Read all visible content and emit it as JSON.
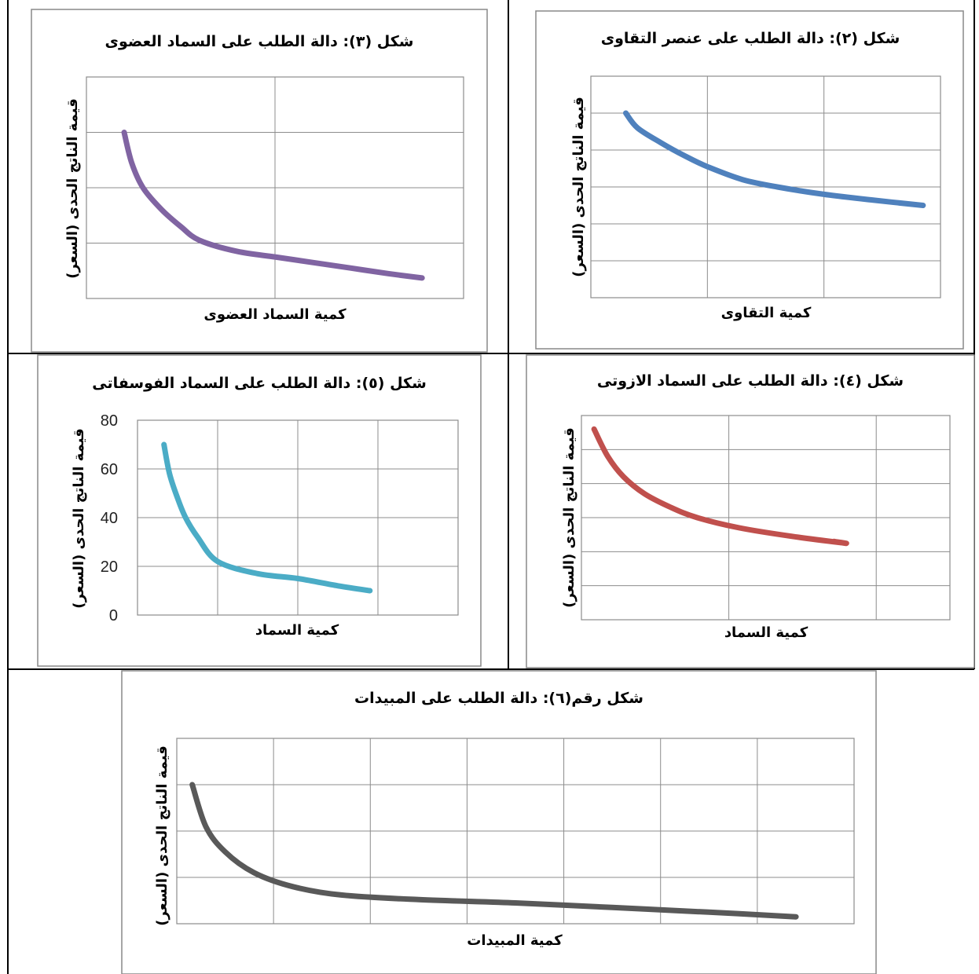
{
  "chart_data": [
    {
      "id": "fig3",
      "type": "line",
      "title": "شكل (٣): دالة الطلب على السماد العضوى",
      "xlabel": "كمية السماد العضوى",
      "ylabel": "قيمة الناتج الحدى (السعر)",
      "color": "#8064a2",
      "xlim": [
        0,
        10
      ],
      "ylim": [
        0,
        4
      ],
      "grid": true,
      "x": [
        1.0,
        1.2,
        1.5,
        2.0,
        2.5,
        3.0,
        4.0,
        5.0,
        6.0,
        7.0,
        8.0,
        8.9
      ],
      "y": [
        3.0,
        2.45,
        2.0,
        1.6,
        1.3,
        1.05,
        0.85,
        0.75,
        0.65,
        0.55,
        0.45,
        0.37
      ]
    },
    {
      "id": "fig2",
      "type": "line",
      "title": "شكل (٢): دالة الطلب على عنصر التقاوى",
      "xlabel": "كمية التقاوى",
      "ylabel": "قيمة الناتج الحدى (السعر)",
      "color": "#4f81bd",
      "xlim": [
        0,
        3
      ],
      "ylim": [
        0,
        6
      ],
      "grid": true,
      "x": [
        0.3,
        0.4,
        0.6,
        0.8,
        1.0,
        1.3,
        1.6,
        2.0,
        2.4,
        2.85
      ],
      "y": [
        5.0,
        4.6,
        4.2,
        3.85,
        3.55,
        3.2,
        3.0,
        2.8,
        2.65,
        2.5
      ]
    },
    {
      "id": "fig5",
      "type": "line",
      "title": "شكل (٥): دالة الطلب على السماد الفوسفاتى",
      "xlabel": "كمية السماد",
      "ylabel": "قيمة الناتج الحدى (السعر)",
      "color": "#4bacc6",
      "xlim": [
        0,
        4
      ],
      "ylim": [
        0,
        80
      ],
      "yticks": [
        0,
        20,
        40,
        60,
        80
      ],
      "grid": true,
      "x": [
        0.33,
        0.4,
        0.5,
        0.6,
        0.75,
        1.0,
        1.5,
        2.0,
        2.5,
        2.9
      ],
      "y": [
        70,
        58,
        48,
        40,
        32,
        22,
        17,
        15,
        12,
        10
      ]
    },
    {
      "id": "fig4",
      "type": "line",
      "title": "شكل (٤): دالة الطلب على السماد الازوتى",
      "xlabel": "كمية السماد",
      "ylabel": "قيمة الناتج الحدى (السعر)",
      "color": "#c0504d",
      "xlim": [
        0,
        3.5
      ],
      "ylim": [
        0,
        6
      ],
      "grid": true,
      "x": [
        0.12,
        0.25,
        0.4,
        0.6,
        0.85,
        1.1,
        1.5,
        2.0,
        2.5,
        2.4
      ],
      "y": [
        5.6,
        4.8,
        4.2,
        3.7,
        3.3,
        3.0,
        2.7,
        2.45,
        2.25,
        2.3
      ]
    },
    {
      "id": "fig6",
      "type": "line",
      "title": "شكل رقم(٦): دالة الطلب على المبيدات",
      "xlabel": "كمية المبيدات",
      "ylabel": "قيمة الناتج الحدى (السعر)",
      "color": "#595959",
      "xlim": [
        0,
        7
      ],
      "ylim": [
        0,
        4
      ],
      "grid": true,
      "x": [
        0.16,
        0.3,
        0.5,
        0.8,
        1.2,
        1.7,
        2.5,
        3.5,
        4.5,
        5.5,
        6.4
      ],
      "y": [
        3.0,
        2.1,
        1.55,
        1.1,
        0.8,
        0.62,
        0.52,
        0.45,
        0.35,
        0.25,
        0.15
      ]
    }
  ]
}
